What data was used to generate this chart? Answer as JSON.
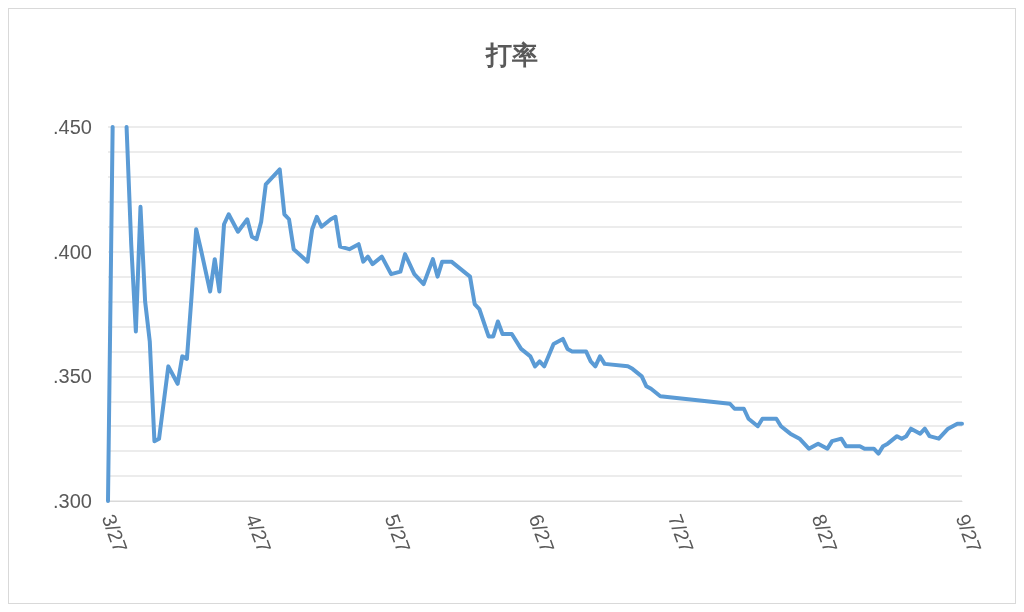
{
  "chart_data": {
    "type": "line",
    "title": "打率",
    "x": [
      "--03-27",
      "--03-28",
      "--03-29",
      "--03-31",
      "--04-01",
      "--04-02",
      "--04-03",
      "--04-04",
      "--04-05",
      "--04-06",
      "--04-07",
      "--04-09",
      "--04-11",
      "--04-12",
      "--04-13",
      "--04-14",
      "--04-15",
      "--04-16",
      "--04-18",
      "--04-19",
      "--04-20",
      "--04-21",
      "--04-22",
      "--04-24",
      "--04-26",
      "--04-27",
      "--04-28",
      "--04-29",
      "--04-30",
      "--05-03",
      "--05-04",
      "--05-05",
      "--05-06",
      "--05-09",
      "--05-10",
      "--05-11",
      "--05-12",
      "--05-14",
      "--05-15",
      "--05-16",
      "--05-18",
      "--05-20",
      "--05-21",
      "--05-22",
      "--05-23",
      "--05-25",
      "--05-27",
      "--05-29",
      "--05-30",
      "--06-01",
      "--06-03",
      "--06-04",
      "--06-05",
      "--06-06",
      "--06-07",
      "--06-09",
      "--06-11",
      "--06-13",
      "--06-14",
      "--06-15",
      "--06-17",
      "--06-18",
      "--06-19",
      "--06-20",
      "--06-22",
      "--06-24",
      "--06-26",
      "--06-27",
      "--06-28",
      "--06-29",
      "--07-01",
      "--07-03",
      "--07-04",
      "--07-05",
      "--07-08",
      "--07-09",
      "--07-10",
      "--07-11",
      "--07-12",
      "--07-17",
      "--07-18",
      "--07-20",
      "--07-21",
      "--07-22",
      "--07-24",
      "--08-08",
      "--08-09",
      "--08-11",
      "--08-12",
      "--08-14",
      "--08-15",
      "--08-18",
      "--08-19",
      "--08-21",
      "--08-23",
      "--08-25",
      "--08-27",
      "--08-29",
      "--08-30",
      "--09-01",
      "--09-02",
      "--09-05",
      "--09-06",
      "--09-08",
      "--09-09",
      "--09-10",
      "--09-11",
      "--09-13",
      "--09-14",
      "--09-15",
      "--09-16",
      "--09-18",
      "--09-19",
      "--09-20",
      "--09-22",
      "--09-23",
      "--09-24",
      "--09-25",
      "--09-26",
      "--09-27"
    ],
    "series": [
      {
        "color": "#5b9bd5",
        "values": [
          0.3,
          0.45,
          null,
          0.45,
          0.403,
          0.368,
          0.418,
          0.38,
          0.364,
          0.324,
          0.325,
          0.354,
          0.347,
          0.358,
          0.357,
          0.382,
          0.409,
          0.401,
          0.384,
          0.397,
          0.384,
          0.411,
          0.415,
          0.408,
          0.413,
          0.406,
          0.405,
          0.412,
          0.427,
          0.433,
          0.415,
          0.413,
          0.401,
          0.396,
          0.409,
          0.414,
          0.41,
          0.413,
          0.414,
          0.402,
          0.401,
          0.403,
          0.396,
          0.398,
          0.395,
          0.398,
          0.391,
          0.392,
          0.399,
          0.391,
          0.387,
          0.392,
          0.397,
          0.39,
          0.396,
          0.396,
          0.393,
          0.39,
          0.379,
          0.377,
          0.366,
          0.366,
          0.372,
          0.367,
          0.367,
          0.361,
          0.358,
          0.354,
          0.356,
          0.354,
          0.363,
          0.365,
          0.361,
          0.36,
          0.36,
          0.356,
          0.354,
          0.358,
          0.355,
          0.354,
          0.353,
          0.35,
          0.346,
          0.345,
          0.342,
          0.339,
          0.337,
          0.337,
          0.333,
          0.33,
          0.333,
          0.333,
          0.33,
          0.327,
          0.325,
          0.321,
          0.323,
          0.321,
          0.324,
          0.325,
          0.322,
          0.322,
          0.321,
          0.321,
          0.319,
          0.322,
          0.323,
          0.326,
          0.325,
          0.326,
          0.329,
          0.327,
          0.329,
          0.326,
          0.325,
          0.327,
          0.329,
          0.33,
          0.331,
          0.331
        ]
      }
    ],
    "xlim": [
      "--03-27",
      "--09-27"
    ],
    "xticks": [
      {
        "value": "--03-27",
        "label": "3/27"
      },
      {
        "value": "--04-27",
        "label": "4/27"
      },
      {
        "value": "--05-27",
        "label": "5/27"
      },
      {
        "value": "--06-27",
        "label": "6/27"
      },
      {
        "value": "--07-27",
        "label": "7/27"
      },
      {
        "value": "--08-27",
        "label": "8/27"
      },
      {
        "value": "--09-27",
        "label": "9/27"
      }
    ],
    "ylim": [
      0.3,
      0.45
    ],
    "yticks": [
      {
        "value": 0.3,
        "label": ".300"
      },
      {
        "value": 0.31,
        "label": null
      },
      {
        "value": 0.32,
        "label": null
      },
      {
        "value": 0.33,
        "label": null
      },
      {
        "value": 0.34,
        "label": null
      },
      {
        "value": 0.35,
        "label": ".350"
      },
      {
        "value": 0.36,
        "label": null
      },
      {
        "value": 0.37,
        "label": null
      },
      {
        "value": 0.38,
        "label": null
      },
      {
        "value": 0.39,
        "label": null
      },
      {
        "value": 0.4,
        "label": ".400"
      },
      {
        "value": 0.41,
        "label": null
      },
      {
        "value": 0.42,
        "label": null
      },
      {
        "value": 0.43,
        "label": null
      },
      {
        "value": 0.44,
        "label": null
      },
      {
        "value": 0.45,
        "label": ".450"
      }
    ],
    "grid": "y",
    "marker": "none",
    "line_style": "solid"
  }
}
